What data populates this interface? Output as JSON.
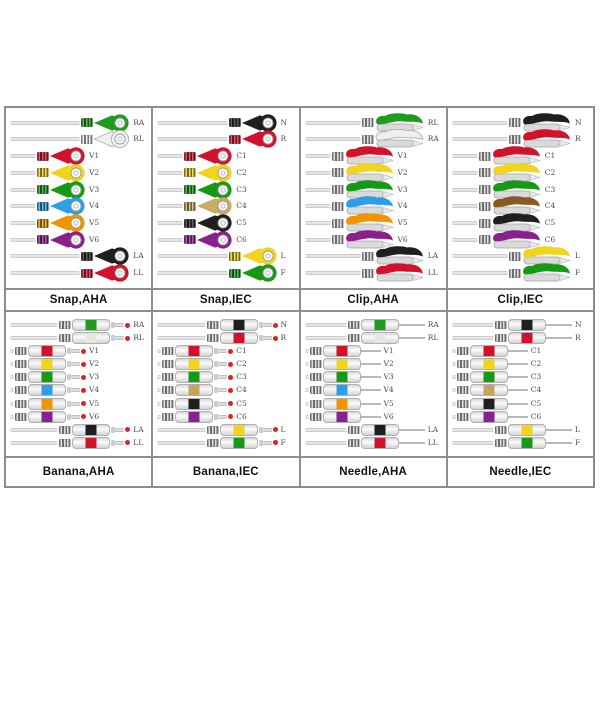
{
  "colors": {
    "grid_border": "#8a8a8a",
    "cable": "#d6d6d6",
    "caption_text": "#111111",
    "label_text": "#4b4b52",
    "banana_tip": "#e02020",
    "white_lead": "#efefef"
  },
  "panels": [
    {
      "id": "snap-aha",
      "caption": "Snap,AHA",
      "connector": "snap",
      "leads": [
        {
          "label": "RA",
          "color": "#1e9c1e",
          "placement": "right"
        },
        {
          "label": "RL",
          "color": "#efefef",
          "placement": "right"
        },
        {
          "label": "V1",
          "color": "#d2112b",
          "placement": "mid"
        },
        {
          "label": "V2",
          "color": "#f2d41c",
          "placement": "mid"
        },
        {
          "label": "V3",
          "color": "#169a16",
          "placement": "mid"
        },
        {
          "label": "V4",
          "color": "#2d9fe8",
          "placement": "mid"
        },
        {
          "label": "V5",
          "color": "#f29400",
          "placement": "mid"
        },
        {
          "label": "V6",
          "color": "#8a1f8e",
          "placement": "mid"
        },
        {
          "label": "LA",
          "color": "#1f1f1f",
          "placement": "right"
        },
        {
          "label": "LL",
          "color": "#d2112b",
          "placement": "right"
        }
      ]
    },
    {
      "id": "snap-iec",
      "caption": "Snap,IEC",
      "connector": "snap",
      "leads": [
        {
          "label": "N",
          "color": "#1f1f1f",
          "placement": "right"
        },
        {
          "label": "R",
          "color": "#d2112b",
          "placement": "right"
        },
        {
          "label": "C1",
          "color": "#d2112b",
          "placement": "mid"
        },
        {
          "label": "C2",
          "color": "#f2d41c",
          "placement": "mid"
        },
        {
          "label": "C3",
          "color": "#169a16",
          "placement": "mid"
        },
        {
          "label": "C4",
          "color": "#c9ab62",
          "placement": "mid"
        },
        {
          "label": "C5",
          "color": "#1f1f1f",
          "placement": "mid"
        },
        {
          "label": "C6",
          "color": "#8a1f8e",
          "placement": "mid"
        },
        {
          "label": "L",
          "color": "#f2d41c",
          "placement": "right"
        },
        {
          "label": "F",
          "color": "#169a16",
          "placement": "right"
        }
      ]
    },
    {
      "id": "clip-aha",
      "caption": "Clip,AHA",
      "connector": "clip",
      "leads": [
        {
          "label": "RL",
          "color": "#1e9c1e",
          "placement": "right"
        },
        {
          "label": "RA",
          "color": "#efefef",
          "placement": "right"
        },
        {
          "label": "V1",
          "color": "#d2112b",
          "placement": "mid"
        },
        {
          "label": "V2",
          "color": "#f2d41c",
          "placement": "mid"
        },
        {
          "label": "V3",
          "color": "#169a16",
          "placement": "mid"
        },
        {
          "label": "V4",
          "color": "#2d9fe8",
          "placement": "mid"
        },
        {
          "label": "V5",
          "color": "#f29400",
          "placement": "mid"
        },
        {
          "label": "V6",
          "color": "#8a1f8e",
          "placement": "mid"
        },
        {
          "label": "LA",
          "color": "#1f1f1f",
          "placement": "right"
        },
        {
          "label": "LL",
          "color": "#d2112b",
          "placement": "right"
        }
      ]
    },
    {
      "id": "clip-iec",
      "caption": "Clip,IEC",
      "connector": "clip",
      "leads": [
        {
          "label": "N",
          "color": "#1f1f1f",
          "placement": "right"
        },
        {
          "label": "R",
          "color": "#d2112b",
          "placement": "right"
        },
        {
          "label": "C1",
          "color": "#d2112b",
          "placement": "mid"
        },
        {
          "label": "C2",
          "color": "#f2d41c",
          "placement": "mid"
        },
        {
          "label": "C3",
          "color": "#169a16",
          "placement": "mid"
        },
        {
          "label": "C4",
          "color": "#8a5a26",
          "placement": "mid"
        },
        {
          "label": "C5",
          "color": "#1f1f1f",
          "placement": "mid"
        },
        {
          "label": "C6",
          "color": "#8a1f8e",
          "placement": "mid"
        },
        {
          "label": "L",
          "color": "#f2d41c",
          "placement": "right"
        },
        {
          "label": "F",
          "color": "#169a16",
          "placement": "right"
        }
      ]
    },
    {
      "id": "banana-aha",
      "caption": "Banana,AHA",
      "connector": "banana",
      "leads": [
        {
          "label": "RA",
          "color": "#1e9c1e",
          "placement": "right"
        },
        {
          "label": "RL",
          "color": "#e6e8e4",
          "placement": "right"
        },
        {
          "label": "V1",
          "color": "#d2112b",
          "placement": "mid"
        },
        {
          "label": "V2",
          "color": "#f2d41c",
          "placement": "mid"
        },
        {
          "label": "V3",
          "color": "#169a16",
          "placement": "mid"
        },
        {
          "label": "V4",
          "color": "#2d9fe8",
          "placement": "mid"
        },
        {
          "label": "V5",
          "color": "#f29400",
          "placement": "mid"
        },
        {
          "label": "V6",
          "color": "#8a1f8e",
          "placement": "mid"
        },
        {
          "label": "LA",
          "color": "#1f1f1f",
          "placement": "right"
        },
        {
          "label": "LL",
          "color": "#d2112b",
          "placement": "right"
        }
      ]
    },
    {
      "id": "banana-iec",
      "caption": "Banana,IEC",
      "connector": "banana",
      "leads": [
        {
          "label": "N",
          "color": "#1f1f1f",
          "placement": "right"
        },
        {
          "label": "R",
          "color": "#d2112b",
          "placement": "right"
        },
        {
          "label": "C1",
          "color": "#d2112b",
          "placement": "mid"
        },
        {
          "label": "C2",
          "color": "#f2d41c",
          "placement": "mid"
        },
        {
          "label": "C3",
          "color": "#169a16",
          "placement": "mid"
        },
        {
          "label": "C4",
          "color": "#c4a45e",
          "placement": "mid"
        },
        {
          "label": "C5",
          "color": "#1f1f1f",
          "placement": "mid"
        },
        {
          "label": "C6",
          "color": "#8a1f8e",
          "placement": "mid"
        },
        {
          "label": "L",
          "color": "#f2d41c",
          "placement": "right"
        },
        {
          "label": "F",
          "color": "#169a16",
          "placement": "right"
        }
      ]
    },
    {
      "id": "needle-aha",
      "caption": "Needle,AHA",
      "connector": "needle",
      "leads": [
        {
          "label": "RA",
          "color": "#1e9c1e",
          "placement": "right"
        },
        {
          "label": "RL",
          "color": "#e6e8e4",
          "placement": "right"
        },
        {
          "label": "V1",
          "color": "#d2112b",
          "placement": "mid"
        },
        {
          "label": "V2",
          "color": "#f2d41c",
          "placement": "mid"
        },
        {
          "label": "V3",
          "color": "#169a16",
          "placement": "mid"
        },
        {
          "label": "V4",
          "color": "#2d9fe8",
          "placement": "mid"
        },
        {
          "label": "V5",
          "color": "#f29400",
          "placement": "mid"
        },
        {
          "label": "V6",
          "color": "#8a1f8e",
          "placement": "mid"
        },
        {
          "label": "LA",
          "color": "#1f1f1f",
          "placement": "right"
        },
        {
          "label": "LL",
          "color": "#d2112b",
          "placement": "right"
        }
      ]
    },
    {
      "id": "needle-iec",
      "caption": "Needle,IEC",
      "connector": "needle",
      "leads": [
        {
          "label": "N",
          "color": "#1f1f1f",
          "placement": "right"
        },
        {
          "label": "R",
          "color": "#d2112b",
          "placement": "right"
        },
        {
          "label": "C1",
          "color": "#d2112b",
          "placement": "mid"
        },
        {
          "label": "C2",
          "color": "#f2d41c",
          "placement": "mid"
        },
        {
          "label": "C3",
          "color": "#169a16",
          "placement": "mid"
        },
        {
          "label": "C4",
          "color": "#c4a45e",
          "placement": "mid"
        },
        {
          "label": "C5",
          "color": "#1f1f1f",
          "placement": "mid"
        },
        {
          "label": "C6",
          "color": "#8a1f8e",
          "placement": "mid"
        },
        {
          "label": "L",
          "color": "#f2d41c",
          "placement": "right"
        },
        {
          "label": "F",
          "color": "#169a16",
          "placement": "right"
        }
      ]
    }
  ]
}
